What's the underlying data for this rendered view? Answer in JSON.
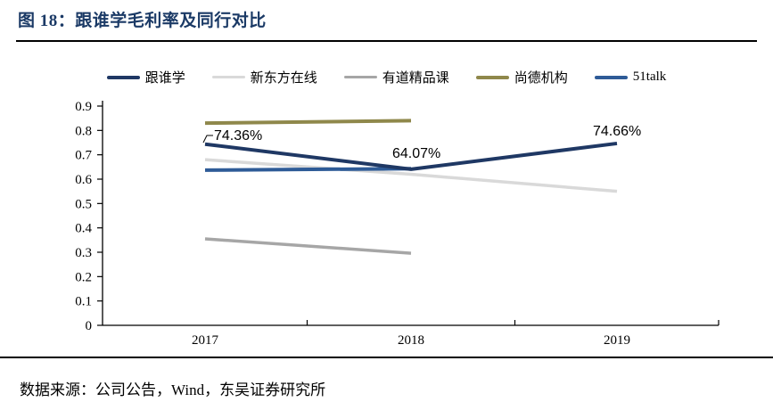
{
  "figure": {
    "title": "图 18：跟谁学毛利率及同行对比",
    "source_note": "数据来源：公司公告，Wind，东吴证券研究所"
  },
  "colors": {
    "title": "#1b3a66",
    "axis": "#000000"
  },
  "chart_data": {
    "type": "line",
    "categories": [
      "2017",
      "2018",
      "2019"
    ],
    "series": [
      {
        "name": "跟谁学",
        "color": "#1f3864",
        "width": 4,
        "values": [
          0.7436,
          0.6407,
          0.7466
        ]
      },
      {
        "name": "新东方在线",
        "color": "#d9d9d9",
        "width": 3.5,
        "values": [
          0.68,
          0.62,
          0.55
        ]
      },
      {
        "name": "有道精品课",
        "color": "#a6a6a6",
        "width": 3.5,
        "values": [
          0.355,
          0.296,
          null
        ]
      },
      {
        "name": "尚德机构",
        "color": "#8f884b",
        "width": 4,
        "values": [
          0.83,
          0.84,
          null
        ]
      },
      {
        "name": "51talk",
        "color": "#2e5b97",
        "width": 4,
        "values": [
          0.637,
          0.643,
          null
        ]
      }
    ],
    "annotations": [
      {
        "text": "74.36%",
        "series": "跟谁学",
        "point_index": 0
      },
      {
        "text": "64.07%",
        "series": "跟谁学",
        "point_index": 1
      },
      {
        "text": "74.66%",
        "series": "跟谁学",
        "point_index": 2
      }
    ],
    "ylim": [
      0,
      0.9
    ],
    "yticks": [
      "0",
      "0.1",
      "0.2",
      "0.3",
      "0.4",
      "0.5",
      "0.6",
      "0.7",
      "0.8",
      "0.9"
    ],
    "grid": false,
    "legend_position": "top"
  }
}
